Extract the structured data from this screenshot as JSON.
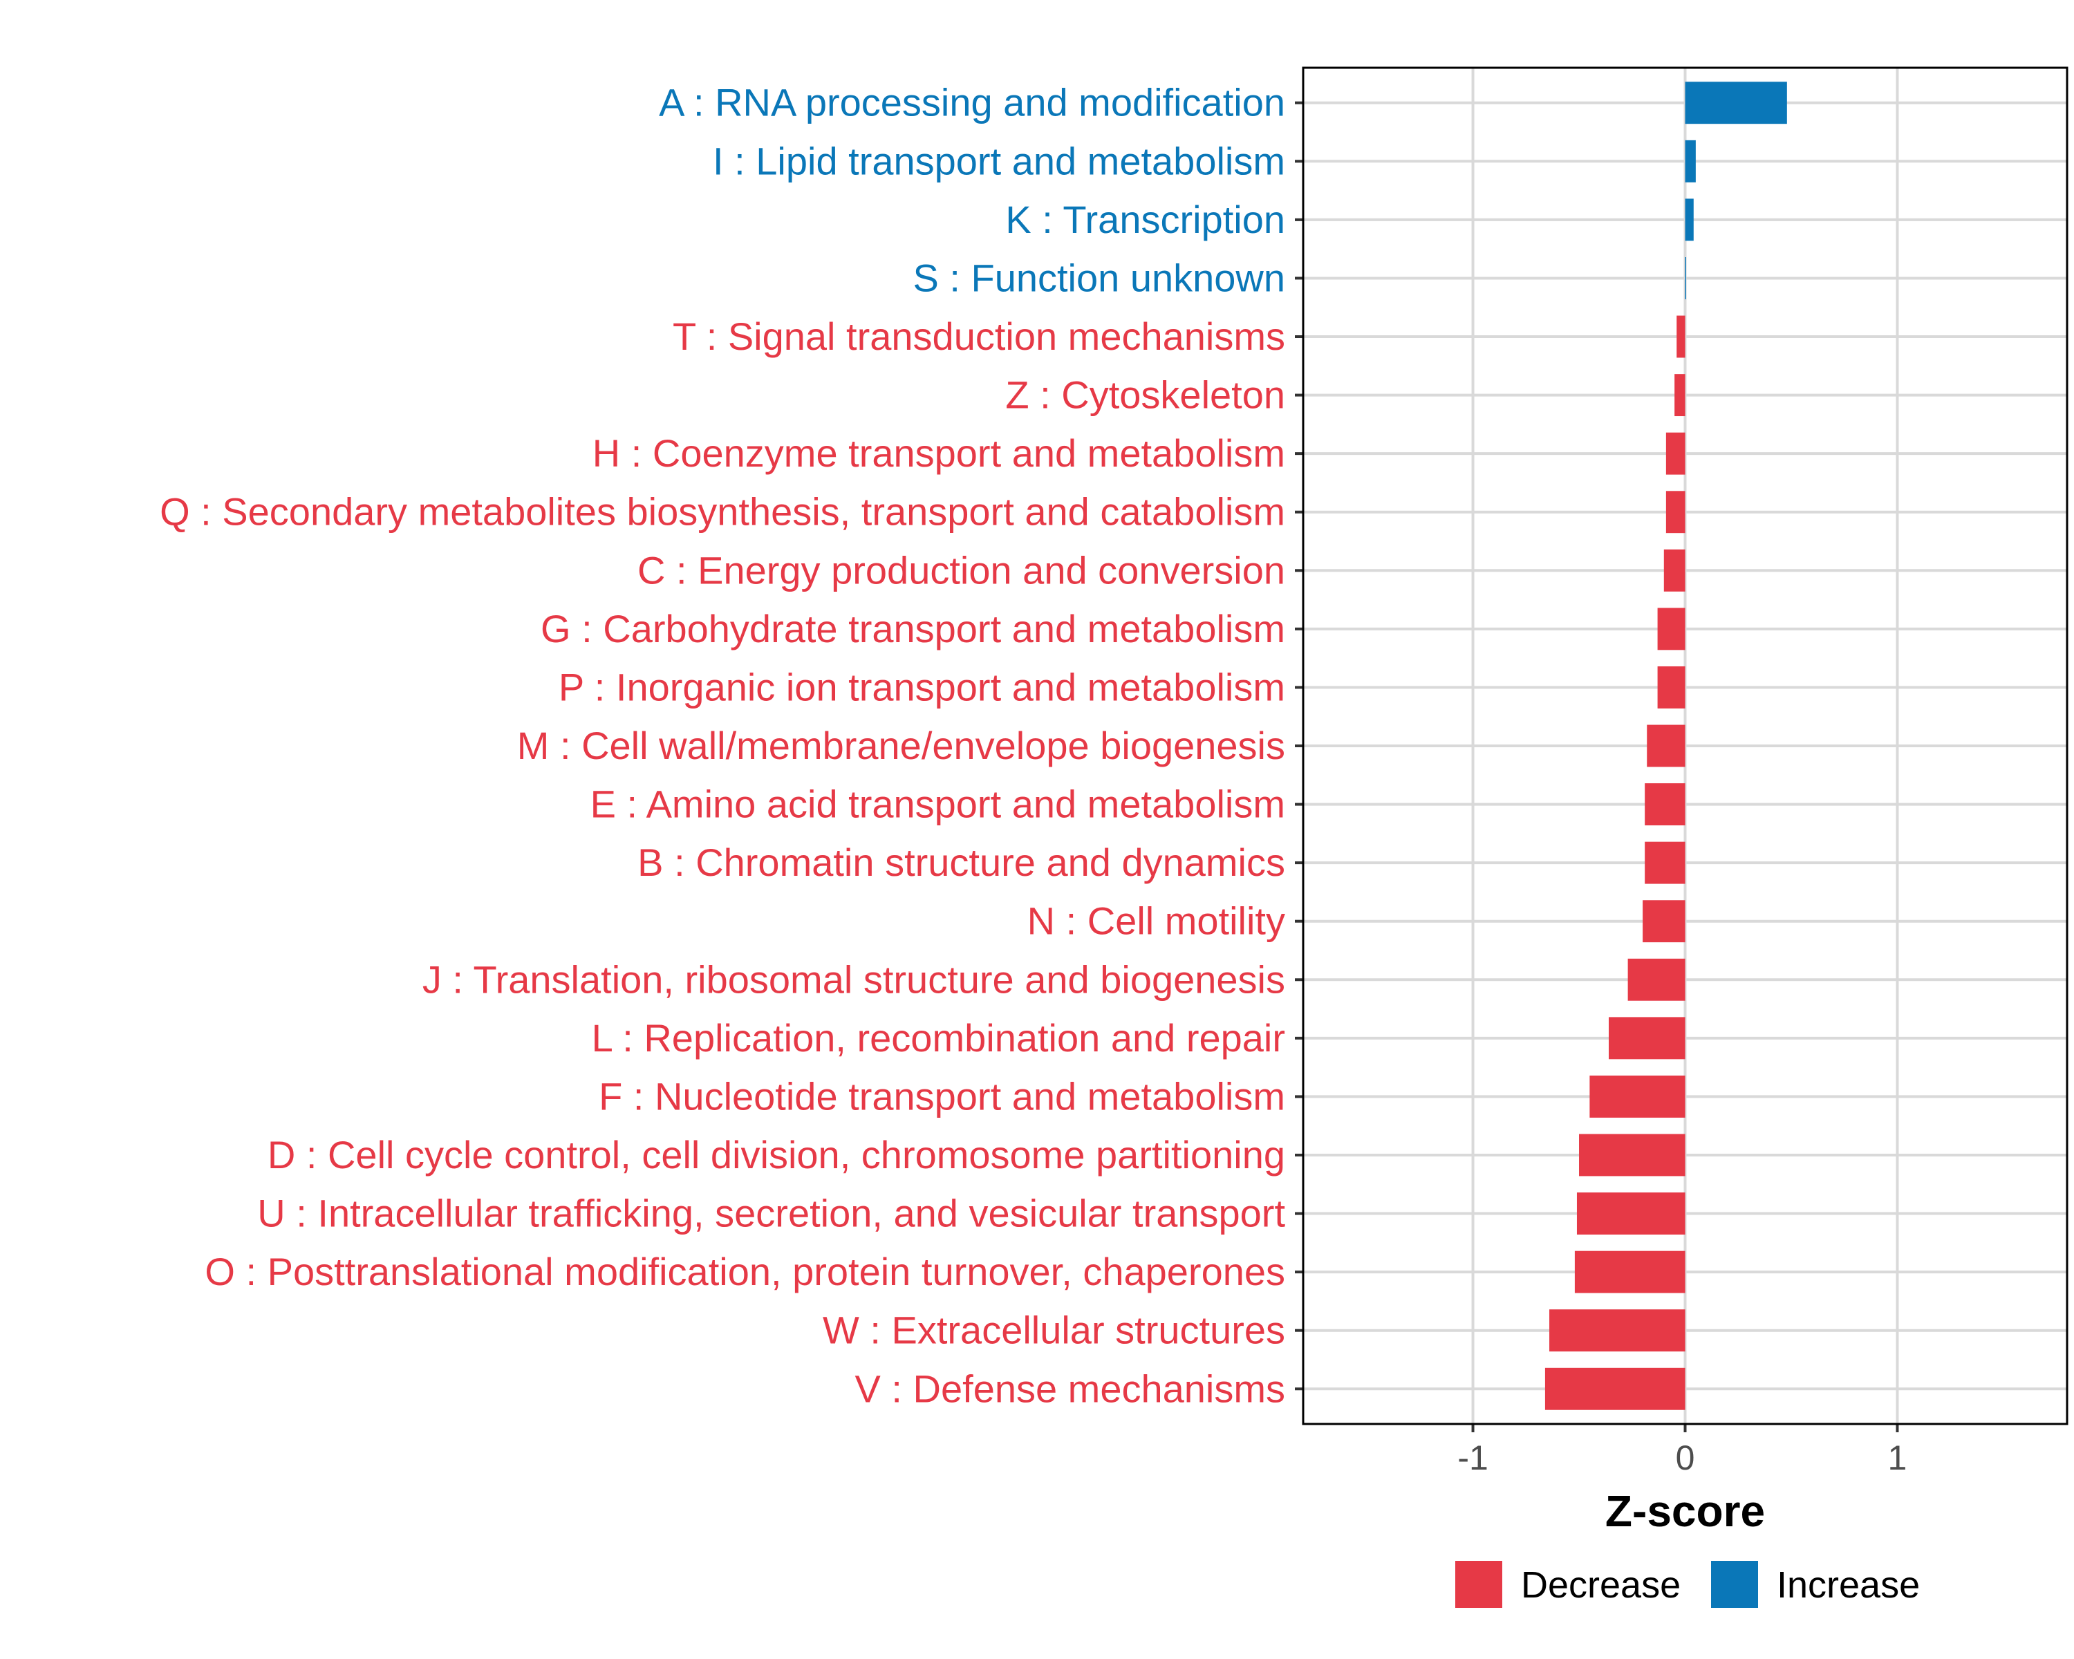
{
  "chart_data": {
    "type": "bar",
    "orientation": "horizontal",
    "title": "",
    "xlabel": "Z-score",
    "ylabel": "",
    "xlim": [
      -1.8,
      1.8
    ],
    "xticks": [
      -1,
      0,
      1
    ],
    "xtick_labels": [
      "-1",
      "0",
      "1"
    ],
    "grid": true,
    "legend_position": "bottom",
    "colors": {
      "Decrease": "#e63946",
      "Increase": "#0a77b8"
    },
    "legend": [
      {
        "name": "Decrease",
        "color": "#e63946"
      },
      {
        "name": "Increase",
        "color": "#0a77b8"
      }
    ],
    "categories": [
      "A : RNA processing and modification",
      "I : Lipid transport and metabolism",
      "K : Transcription",
      "S : Function unknown",
      "T : Signal transduction mechanisms",
      "Z : Cytoskeleton",
      "H : Coenzyme transport and metabolism",
      "Q : Secondary metabolites biosynthesis, transport and catabolism",
      "C : Energy production and conversion",
      "G : Carbohydrate transport and metabolism",
      "P : Inorganic ion transport and metabolism",
      "M : Cell wall/membrane/envelope biogenesis",
      "E : Amino acid transport and metabolism",
      "B : Chromatin structure and dynamics",
      "N : Cell motility",
      "J : Translation, ribosomal structure and biogenesis",
      "L : Replication, recombination and repair",
      "F : Nucleotide transport and metabolism",
      "D : Cell cycle control, cell division, chromosome partitioning",
      "U : Intracellular trafficking, secretion, and vesicular transport",
      "O : Posttranslational modification, protein turnover, chaperones",
      "W : Extracellular structures",
      "V : Defense mechanisms"
    ],
    "values": [
      0.48,
      0.05,
      0.04,
      0.005,
      -0.04,
      -0.05,
      -0.09,
      -0.09,
      -0.1,
      -0.13,
      -0.13,
      -0.18,
      -0.19,
      -0.19,
      -0.2,
      -0.27,
      -0.36,
      -0.45,
      -0.5,
      -0.51,
      -0.52,
      -0.64,
      -0.66
    ],
    "groups": [
      "Increase",
      "Increase",
      "Increase",
      "Increase",
      "Decrease",
      "Decrease",
      "Decrease",
      "Decrease",
      "Decrease",
      "Decrease",
      "Decrease",
      "Decrease",
      "Decrease",
      "Decrease",
      "Decrease",
      "Decrease",
      "Decrease",
      "Decrease",
      "Decrease",
      "Decrease",
      "Decrease",
      "Decrease",
      "Decrease"
    ]
  }
}
